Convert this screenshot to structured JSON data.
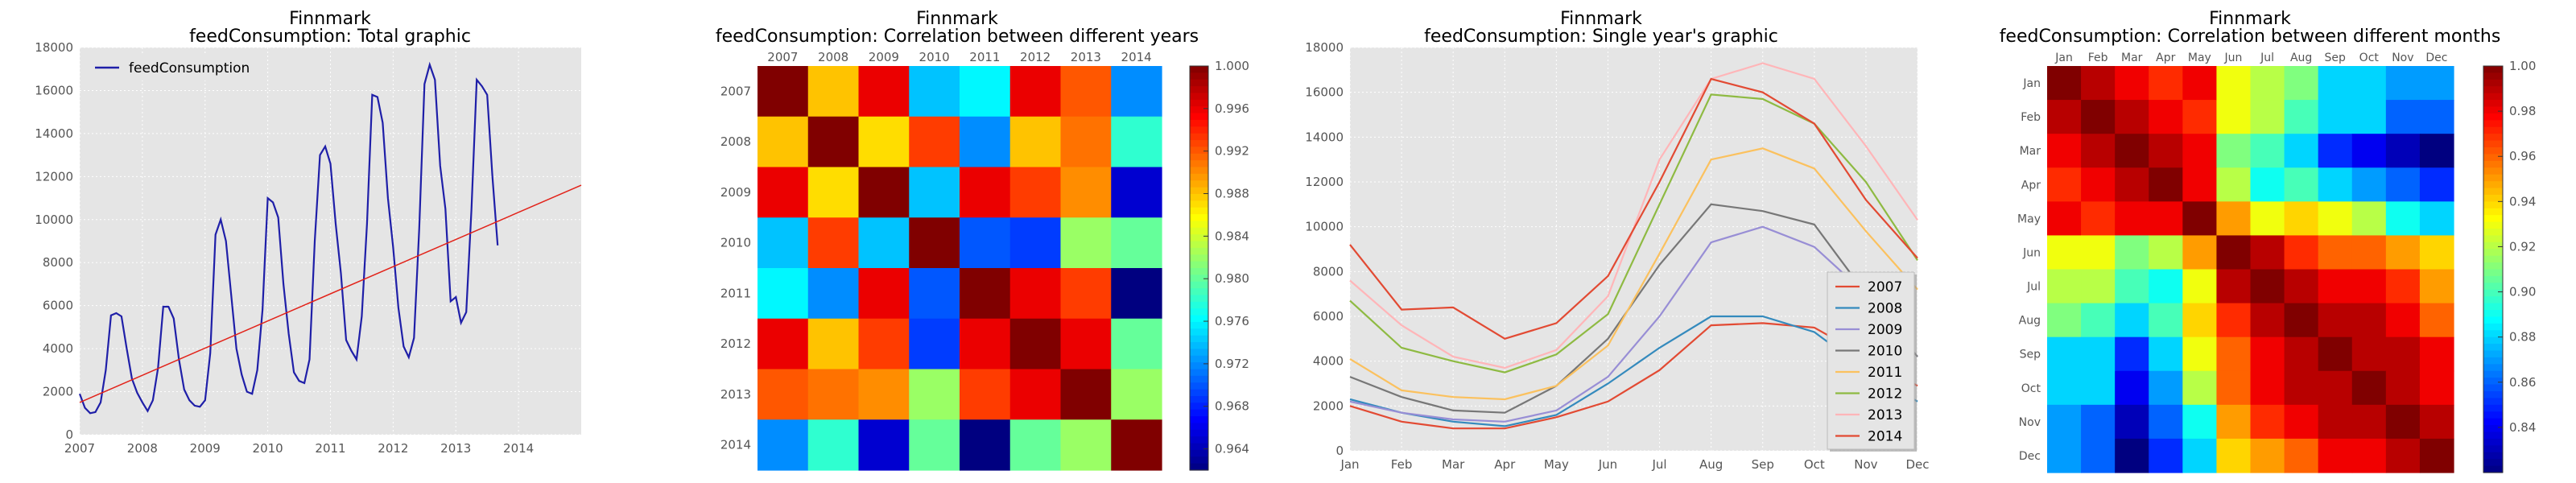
{
  "colors": {
    "series": "#1f1fa8",
    "trend": "#e2231a",
    "axes_bg": "#e5e5e5",
    "grid": "#ffffff",
    "line_palette": [
      "#e24a33",
      "#348abd",
      "#988ed5",
      "#777777",
      "#fbc15e",
      "#8eba42",
      "#ffb5b8",
      "#e24a33"
    ]
  },
  "chart_data": [
    {
      "type": "line",
      "title": "Finnmark",
      "subtitle": "feedConsumption: Total graphic",
      "xlabel": "",
      "ylabel": "",
      "xticks": [
        "2007",
        "2008",
        "2009",
        "2010",
        "2011",
        "2012",
        "2013",
        "2014"
      ],
      "xlim": [
        2007,
        2015
      ],
      "ylim": [
        0,
        18000
      ],
      "yticks": [
        0,
        2000,
        4000,
        6000,
        8000,
        10000,
        12000,
        14000,
        16000,
        18000
      ],
      "grid": true,
      "legend": {
        "position": "top-left",
        "entries": [
          "feedConsumption"
        ]
      },
      "series": [
        {
          "name": "feedConsumption",
          "x_start": 2007,
          "step_months": 1,
          "values": [
            1900,
            1250,
            1000,
            1050,
            1500,
            3000,
            5550,
            5650,
            5500,
            4000,
            2600,
            1950,
            1500,
            1100,
            1600,
            3100,
            5950,
            5950,
            5400,
            3500,
            2100,
            1600,
            1350,
            1300,
            1600,
            3800,
            9300,
            10000,
            9000,
            6500,
            4000,
            2800,
            2000,
            1900,
            3000,
            5800,
            11000,
            10800,
            10100,
            7000,
            4700,
            2900,
            2500,
            2400,
            3500,
            9000,
            13000,
            13400,
            12600,
            9800,
            7500,
            4400,
            3900,
            3500,
            5500,
            9800,
            15800,
            15700,
            14500,
            11000,
            8700,
            5900,
            4100,
            3600,
            4500,
            9600,
            16300,
            17200,
            16500,
            12500,
            10500,
            6200,
            6400,
            5200,
            5700,
            10500,
            16500,
            16200,
            15800,
            12000,
            8800
          ]
        },
        {
          "name": "",
          "kind": "trend",
          "x": [
            2007,
            2015
          ],
          "values": [
            1500,
            11600
          ]
        }
      ]
    },
    {
      "type": "heatmap",
      "title": "Finnmark",
      "subtitle": "feedConsumption: Correlation between different years",
      "labels": [
        "2007",
        "2008",
        "2009",
        "2010",
        "2011",
        "2012",
        "2013",
        "2014"
      ],
      "colorbar": {
        "min": 0.962,
        "max": 1.0,
        "ticks": [
          "1.000",
          "0.996",
          "0.992",
          "0.988",
          "0.984",
          "0.980",
          "0.976",
          "0.972",
          "0.968",
          "0.964"
        ]
      },
      "matrix": [
        [
          1.0,
          0.988,
          0.996,
          0.974,
          0.976,
          0.996,
          0.992,
          0.972
        ],
        [
          0.988,
          1.0,
          0.987,
          0.993,
          0.972,
          0.988,
          0.991,
          0.978
        ],
        [
          0.996,
          0.987,
          1.0,
          0.974,
          0.996,
          0.993,
          0.99,
          0.965
        ],
        [
          0.974,
          0.993,
          0.974,
          1.0,
          0.97,
          0.969,
          0.982,
          0.98
        ],
        [
          0.976,
          0.972,
          0.996,
          0.97,
          1.0,
          0.996,
          0.993,
          0.962
        ],
        [
          0.996,
          0.988,
          0.993,
          0.969,
          0.996,
          1.0,
          0.996,
          0.98
        ],
        [
          0.992,
          0.991,
          0.99,
          0.982,
          0.993,
          0.996,
          1.0,
          0.982
        ],
        [
          0.972,
          0.978,
          0.965,
          0.98,
          0.962,
          0.98,
          0.982,
          1.0
        ]
      ]
    },
    {
      "type": "line",
      "title": "Finnmark",
      "subtitle": "feedConsumption: Single year's graphic",
      "categories": [
        "Jan",
        "Feb",
        "Mar",
        "Apr",
        "May",
        "Jun",
        "Jul",
        "Aug",
        "Sep",
        "Oct",
        "Nov",
        "Dec"
      ],
      "ylim": [
        0,
        18000
      ],
      "yticks": [
        0,
        2000,
        4000,
        6000,
        8000,
        10000,
        12000,
        14000,
        16000,
        18000
      ],
      "grid": true,
      "legend": {
        "position": "lower-right"
      },
      "series": [
        {
          "name": "2007",
          "values": [
            2000,
            1300,
            1000,
            1000,
            1500,
            2200,
            3600,
            5600,
            5700,
            5500,
            4200,
            2900
          ]
        },
        {
          "name": "2008",
          "values": [
            2300,
            1700,
            1300,
            1100,
            1600,
            3000,
            4600,
            6000,
            6000,
            5300,
            3600,
            2200
          ]
        },
        {
          "name": "2009",
          "values": [
            2200,
            1700,
            1400,
            1300,
            1800,
            3300,
            6000,
            9300,
            10000,
            9100,
            7000,
            4200
          ]
        },
        {
          "name": "2010",
          "values": [
            3300,
            2400,
            1800,
            1700,
            2900,
            5000,
            8300,
            11000,
            10700,
            10100,
            7000,
            4200
          ]
        },
        {
          "name": "2011",
          "values": [
            4100,
            2700,
            2400,
            2300,
            2900,
            4700,
            8800,
            13000,
            13500,
            12600,
            9800,
            7200
          ]
        },
        {
          "name": "2012",
          "values": [
            6700,
            4600,
            4000,
            3500,
            4300,
            6100,
            11000,
            15900,
            15700,
            14600,
            12000,
            8500
          ]
        },
        {
          "name": "2013",
          "values": [
            7600,
            5600,
            4200,
            3700,
            4500,
            6900,
            13000,
            16600,
            17300,
            16600,
            13600,
            10300
          ]
        },
        {
          "name": "2014",
          "values": [
            9200,
            6300,
            6400,
            5000,
            5700,
            7800,
            12000,
            16600,
            16000,
            14600,
            11200,
            8600
          ]
        }
      ]
    },
    {
      "type": "heatmap",
      "title": "Finnmark",
      "subtitle": "feedConsumption: Correlation between different months",
      "labels": [
        "Jan",
        "Feb",
        "Mar",
        "Apr",
        "May",
        "Jun",
        "Jul",
        "Aug",
        "Sep",
        "Oct",
        "Nov",
        "Dec"
      ],
      "colorbar": {
        "min": 0.82,
        "max": 1.0,
        "ticks": [
          "1.00",
          "0.98",
          "0.96",
          "0.94",
          "0.92",
          "0.90",
          "0.88",
          "0.86",
          "0.84"
        ]
      },
      "matrix": [
        [
          1.0,
          0.99,
          0.98,
          0.97,
          0.98,
          0.93,
          0.92,
          0.91,
          0.88,
          0.88,
          0.87,
          0.87
        ],
        [
          0.99,
          1.0,
          0.99,
          0.98,
          0.97,
          0.93,
          0.92,
          0.9,
          0.88,
          0.88,
          0.86,
          0.86
        ],
        [
          0.98,
          0.99,
          1.0,
          0.99,
          0.98,
          0.91,
          0.9,
          0.88,
          0.85,
          0.84,
          0.83,
          0.82
        ],
        [
          0.97,
          0.98,
          0.99,
          1.0,
          0.98,
          0.92,
          0.89,
          0.9,
          0.88,
          0.87,
          0.86,
          0.85
        ],
        [
          0.98,
          0.97,
          0.98,
          0.98,
          1.0,
          0.95,
          0.93,
          0.94,
          0.93,
          0.92,
          0.89,
          0.88
        ],
        [
          0.93,
          0.93,
          0.91,
          0.92,
          0.95,
          1.0,
          0.99,
          0.97,
          0.96,
          0.96,
          0.95,
          0.94
        ],
        [
          0.92,
          0.92,
          0.9,
          0.89,
          0.93,
          0.99,
          1.0,
          0.99,
          0.98,
          0.98,
          0.97,
          0.95
        ],
        [
          0.91,
          0.9,
          0.88,
          0.9,
          0.94,
          0.97,
          0.99,
          1.0,
          0.99,
          0.99,
          0.98,
          0.96
        ],
        [
          0.88,
          0.88,
          0.85,
          0.88,
          0.93,
          0.96,
          0.98,
          0.99,
          1.0,
          0.99,
          0.99,
          0.98
        ],
        [
          0.88,
          0.88,
          0.84,
          0.87,
          0.92,
          0.96,
          0.98,
          0.99,
          0.99,
          1.0,
          0.99,
          0.98
        ],
        [
          0.87,
          0.86,
          0.83,
          0.86,
          0.89,
          0.95,
          0.97,
          0.98,
          0.99,
          0.99,
          1.0,
          0.99
        ],
        [
          0.87,
          0.86,
          0.82,
          0.85,
          0.88,
          0.94,
          0.95,
          0.96,
          0.98,
          0.98,
          0.99,
          1.0
        ]
      ]
    }
  ]
}
